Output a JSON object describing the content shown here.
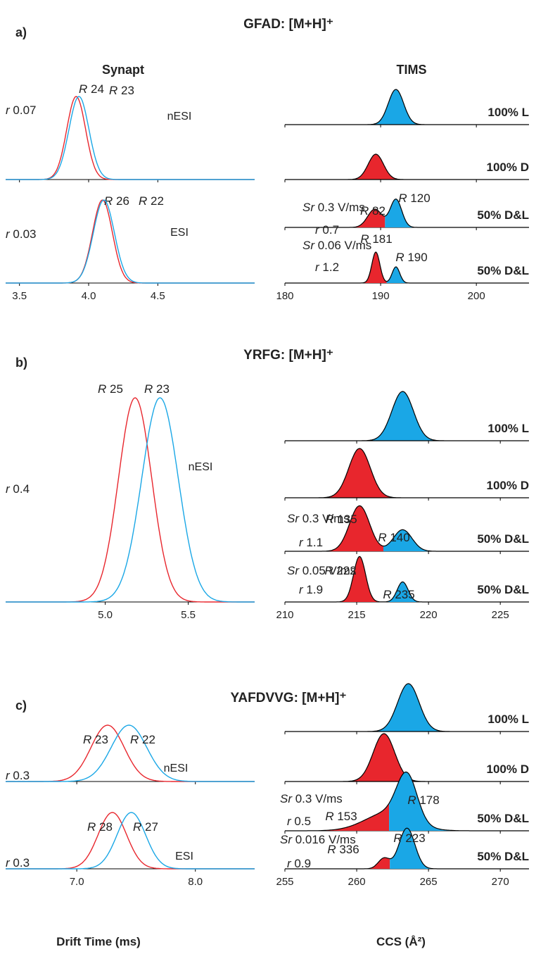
{
  "colors": {
    "red": "#e8262d",
    "blue": "#1aa7e6",
    "axis": "#000000",
    "text": "#222222"
  },
  "figure": {
    "col_titles": {
      "left": "Synapt",
      "right": "TIMS"
    },
    "xlabel_left": "Drift Time (ms)",
    "xlabel_right": "CCS (Å²)"
  },
  "chart_data": [
    {
      "panel": "a)",
      "title": "GFAD: [M+H]⁺",
      "side": "Synapt",
      "type": "line",
      "grid": false,
      "xlim": [
        3.4,
        5.2
      ],
      "xticks": [
        "3.5",
        "4.0",
        "4.5"
      ],
      "xtick_values": [
        3.5,
        4.0,
        4.5
      ],
      "traces": [
        {
          "label_source": "nESI",
          "r_text": "r 0.07",
          "series": [
            {
              "color": "red",
              "center": 3.91,
              "sigma": 0.068,
              "R_text": "R 24"
            },
            {
              "color": "blue",
              "center": 3.93,
              "sigma": 0.072,
              "R_text": "R 23"
            }
          ]
        },
        {
          "label_source": "ESI",
          "r_text": "r 0.03",
          "series": [
            {
              "color": "red",
              "center": 4.1,
              "sigma": 0.072,
              "R_text": "R 26"
            },
            {
              "color": "blue",
              "center": 4.11,
              "sigma": 0.076,
              "R_text": "R 22"
            }
          ]
        }
      ]
    },
    {
      "panel": "a)",
      "side": "TIMS",
      "type": "area",
      "grid": false,
      "xlim": [
        180,
        205.5
      ],
      "xticks": [
        "180",
        "190",
        "200"
      ],
      "xtick_values": [
        180,
        190,
        200
      ],
      "traces": [
        {
          "label": "100% L",
          "peaks": [
            {
              "color": "blue",
              "center": 191.6,
              "sigma": 0.8,
              "height": 1.0
            }
          ]
        },
        {
          "label": "100% D",
          "peaks": [
            {
              "color": "red",
              "center": 189.5,
              "sigma": 0.8,
              "height": 0.72
            }
          ]
        },
        {
          "label": "50% D&L",
          "sr_text": "Sr 0.3 V/ms",
          "r_text": "r 0.7",
          "R_texts": [
            "R 82",
            "R 120"
          ],
          "peaks": [
            {
              "color": "red",
              "center": 189.4,
              "sigma": 0.75,
              "height": 0.52
            },
            {
              "color": "blue",
              "center": 191.6,
              "sigma": 0.6,
              "height": 0.8
            }
          ]
        },
        {
          "label": "50% D&L",
          "sr_text": "Sr 0.06 V/ms",
          "r_text": "r 1.2",
          "R_texts": [
            "R 181",
            "R 190"
          ],
          "peaks": [
            {
              "color": "red",
              "center": 189.5,
              "sigma": 0.42,
              "height": 0.88
            },
            {
              "color": "blue",
              "center": 191.6,
              "sigma": 0.4,
              "height": 0.46
            }
          ]
        }
      ]
    },
    {
      "panel": "b)",
      "title": "YRFG: [M+H]⁺",
      "side": "Synapt",
      "type": "line",
      "grid": false,
      "xlim": [
        4.4,
        5.9
      ],
      "xticks": [
        "5.0",
        "5.5"
      ],
      "xtick_values": [
        5.0,
        5.5
      ],
      "traces": [
        {
          "label_source": "nESI",
          "r_text": "r 0.4",
          "series": [
            {
              "color": "red",
              "center": 5.18,
              "sigma": 0.1,
              "R_text": "R 25"
            },
            {
              "color": "blue",
              "center": 5.33,
              "sigma": 0.11,
              "R_text": "R 23"
            }
          ]
        }
      ]
    },
    {
      "panel": "b)",
      "side": "TIMS",
      "type": "area",
      "grid": false,
      "xlim": [
        210,
        227
      ],
      "xticks": [
        "210",
        "215",
        "220",
        "225"
      ],
      "xtick_values": [
        210,
        215,
        220,
        225
      ],
      "traces": [
        {
          "label": "100% L",
          "peaks": [
            {
              "color": "blue",
              "center": 218.2,
              "sigma": 0.75,
              "height": 1.0
            }
          ]
        },
        {
          "label": "100% D",
          "peaks": [
            {
              "color": "red",
              "center": 215.2,
              "sigma": 0.75,
              "height": 1.0
            }
          ]
        },
        {
          "label": "50% D&L",
          "sr_text": "Sr 0.3 V/ms",
          "r_text": "r 1.1",
          "R_texts": [
            "R 135",
            "R 140"
          ],
          "peaks": [
            {
              "color": "red",
              "center": 215.2,
              "sigma": 0.7,
              "height": 0.95
            },
            {
              "color": "blue",
              "center": 218.2,
              "sigma": 0.65,
              "height": 0.45
            }
          ]
        },
        {
          "label": "50% D&L",
          "sr_text": "Sr 0.05 V/ms",
          "r_text": "r 1.9",
          "R_texts": [
            "R 222",
            "R 235"
          ],
          "peaks": [
            {
              "color": "red",
              "center": 215.2,
              "sigma": 0.42,
              "height": 0.95
            },
            {
              "color": "blue",
              "center": 218.2,
              "sigma": 0.38,
              "height": 0.42
            }
          ]
        }
      ]
    },
    {
      "panel": "c)",
      "title": "YAFDVVG: [M+H]⁺",
      "side": "Synapt",
      "type": "line",
      "grid": false,
      "xlim": [
        6.4,
        8.5
      ],
      "xticks": [
        "7.0",
        "8.0"
      ],
      "xtick_values": [
        7.0,
        8.0
      ],
      "traces": [
        {
          "label_source": "nESI",
          "r_text": "r 0.3",
          "series": [
            {
              "color": "red",
              "center": 7.26,
              "sigma": 0.14,
              "R_text": "R 23"
            },
            {
              "color": "blue",
              "center": 7.44,
              "sigma": 0.15,
              "R_text": "R 22"
            }
          ]
        },
        {
          "label_source": "ESI",
          "r_text": "r 0.3",
          "series": [
            {
              "color": "red",
              "center": 7.3,
              "sigma": 0.12,
              "R_text": "R 28"
            },
            {
              "color": "blue",
              "center": 7.46,
              "sigma": 0.12,
              "R_text": "R 27"
            }
          ]
        }
      ]
    },
    {
      "panel": "c)",
      "side": "TIMS",
      "type": "area",
      "grid": false,
      "xlim": [
        255,
        272
      ],
      "xticks": [
        "255",
        "260",
        "265",
        "270"
      ],
      "xtick_values": [
        255,
        260,
        265,
        270
      ],
      "traces": [
        {
          "label": "100% L",
          "peaks": [
            {
              "color": "blue",
              "center": 263.6,
              "sigma": 0.75,
              "height": 1.0
            }
          ]
        },
        {
          "label": "100% D",
          "peaks": [
            {
              "color": "red",
              "center": 261.9,
              "sigma": 0.75,
              "height": 1.0
            }
          ]
        },
        {
          "label": "50% D&L",
          "sr_text": "Sr 0.3 V/ms",
          "r_text": "r 0.5",
          "R_texts": [
            "R 153",
            "R 178"
          ],
          "peaks": [
            {
              "color": "red",
              "center": 262.2,
              "sigma": 1.6,
              "height": 0.38
            },
            {
              "color": "blue",
              "center": 263.5,
              "sigma": 0.7,
              "height": 0.95
            }
          ]
        },
        {
          "label": "50% D&L",
          "sr_text": "Sr 0.016 V/ms",
          "r_text": "r 0.9",
          "R_texts": [
            "R 336",
            "R 223"
          ],
          "peaks": [
            {
              "color": "red",
              "center": 261.9,
              "sigma": 0.4,
              "height": 0.22
            },
            {
              "color": "blue",
              "center": 263.5,
              "sigma": 0.55,
              "height": 0.85
            }
          ]
        }
      ]
    }
  ]
}
